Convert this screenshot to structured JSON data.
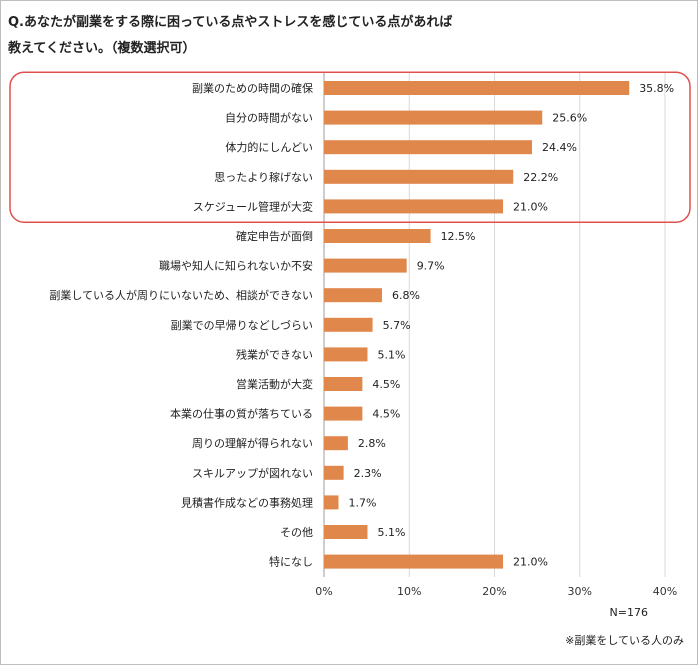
{
  "title_line1": "Q.あなたが副業をする際に困っている点やストレスを感じている点があれば",
  "title_line2": "教えてください。（複数選択可）",
  "footnote_n": "N=176",
  "footnote_note": "※副業をしている人のみ",
  "colors": {
    "bar": "#e0874c",
    "grid": "#d9d9d9",
    "highlight": "#e0504d"
  },
  "chart_data": {
    "type": "bar",
    "orientation": "horizontal",
    "unit": "%",
    "xlim": [
      0,
      40
    ],
    "xticks": [
      0,
      10,
      20,
      30,
      40
    ],
    "xtick_labels": [
      "0%",
      "10%",
      "20%",
      "30%",
      "40%"
    ],
    "grid": true,
    "categories": [
      "副業のための時間の確保",
      "自分の時間がない",
      "体力的にしんどい",
      "思ったより稼げない",
      "スケジュール管理が大変",
      "確定申告が面倒",
      "職場や知人に知られないか不安",
      "副業している人が周りにいないため、相談ができない",
      "副業での早帰りなどしづらい",
      "残業ができない",
      "営業活動が大変",
      "本業の仕事の質が落ちている",
      "周りの理解が得られない",
      "スキルアップが図れない",
      "見積書作成などの事務処理",
      "その他",
      "特になし"
    ],
    "values": [
      35.8,
      25.6,
      24.4,
      22.2,
      21.0,
      12.5,
      9.7,
      6.8,
      5.7,
      5.1,
      4.5,
      4.5,
      2.8,
      2.3,
      1.7,
      5.1,
      21.0
    ],
    "value_labels": [
      "35.8%",
      "25.6%",
      "24.4%",
      "22.2%",
      "21.0%",
      "12.5%",
      "9.7%",
      "6.8%",
      "5.7%",
      "5.1%",
      "4.5%",
      "4.5%",
      "2.8%",
      "2.3%",
      "1.7%",
      "5.1%",
      "21.0%"
    ],
    "highlighted_count": 5
  }
}
